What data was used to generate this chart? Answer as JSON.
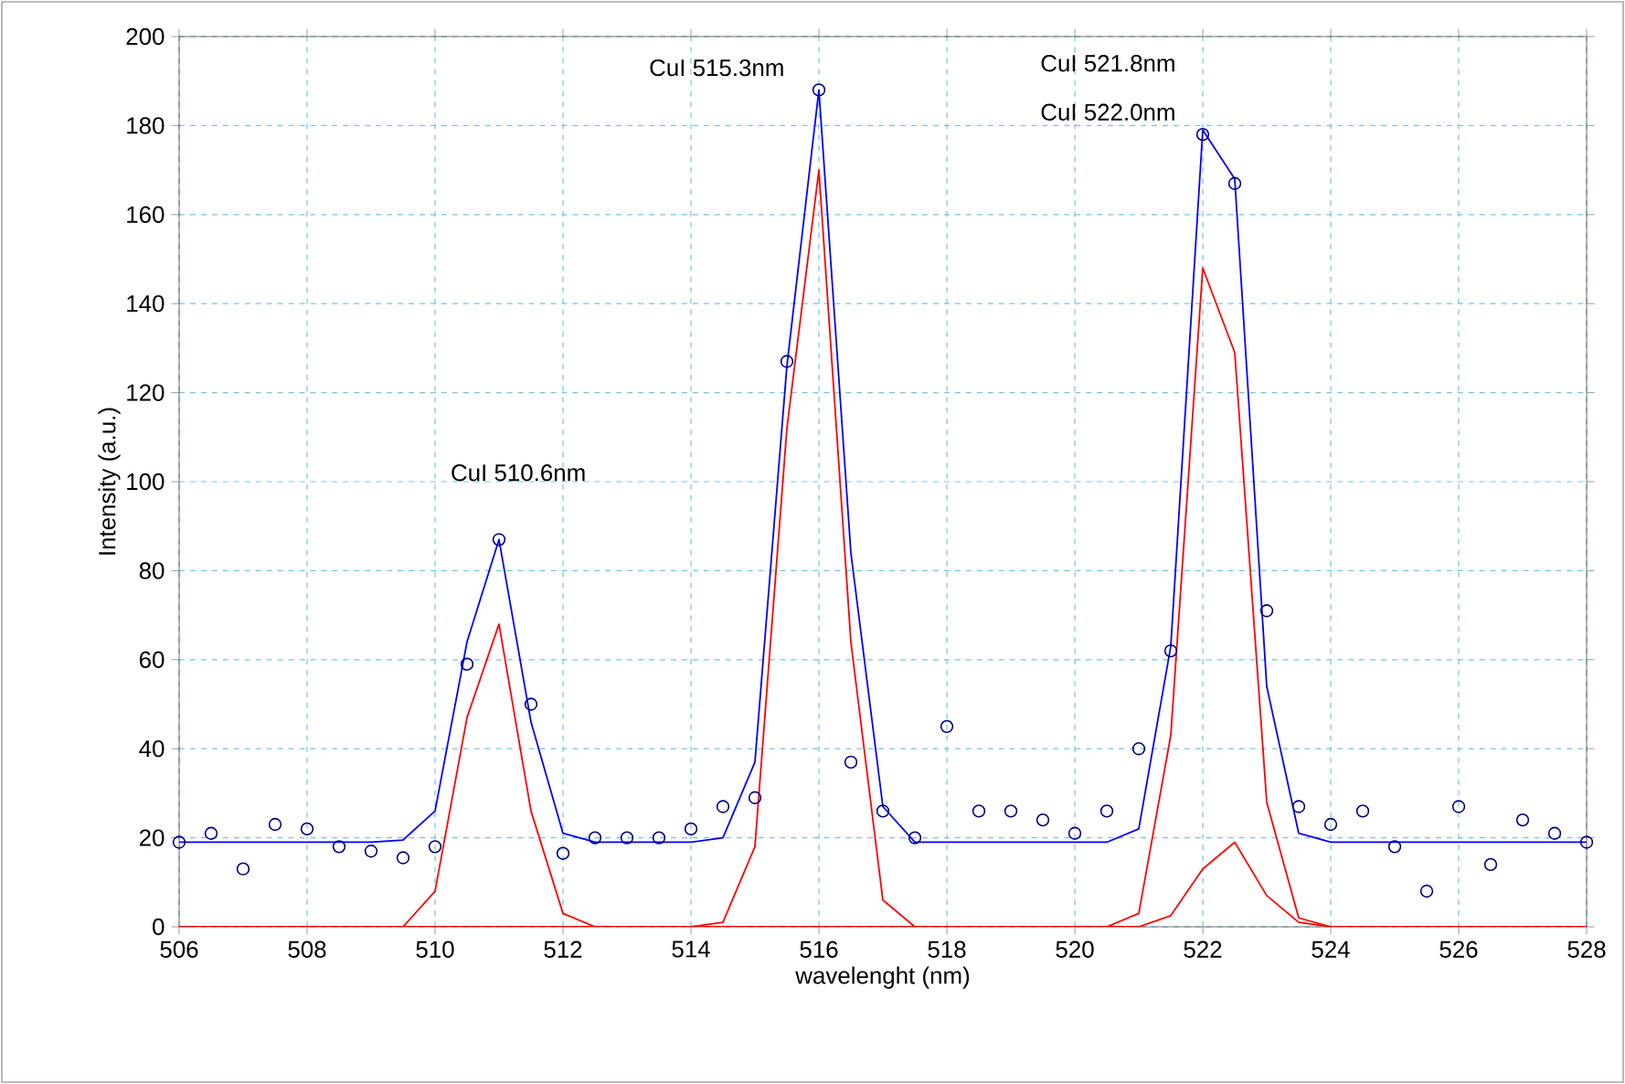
{
  "chart_data": {
    "type": "line",
    "xlabel": "wavelenght (nm)",
    "ylabel": "Intensity (a.u.)",
    "x": [
      506,
      506.5,
      507,
      507.5,
      508,
      508.5,
      509,
      509.5,
      510,
      510.5,
      511,
      511.5,
      512,
      512.5,
      513,
      513.5,
      514,
      514.5,
      515,
      515.5,
      516,
      516.5,
      517,
      517.5,
      518,
      518.5,
      519,
      519.5,
      520,
      520.5,
      521,
      521.5,
      522,
      522.5,
      523,
      523.5,
      524,
      524.5,
      525,
      525.5,
      526,
      526.5,
      527,
      527.5,
      528
    ],
    "series": [
      {
        "color": "#ff0000",
        "marker": "none",
        "values": [
          0,
          0,
          0,
          0,
          0,
          0,
          0,
          0,
          8,
          47,
          68,
          26,
          3,
          0,
          0,
          0,
          0,
          1,
          18,
          112,
          170,
          64,
          6,
          0,
          0,
          0,
          0,
          0,
          0,
          0,
          3,
          43,
          148,
          129,
          28,
          2,
          0,
          0,
          0,
          0,
          0,
          0,
          0,
          0,
          0
        ]
      },
      {
        "color": "#ff0000",
        "marker": "none",
        "values": [
          0,
          0,
          0,
          0,
          0,
          0,
          0,
          0,
          0,
          0,
          0,
          0,
          0,
          0,
          0,
          0,
          0,
          0,
          0,
          0,
          0,
          0,
          0,
          0,
          0,
          0,
          0,
          0,
          0,
          0,
          0,
          2.5,
          13,
          19,
          7,
          1,
          0,
          0,
          0,
          0,
          0,
          0,
          0,
          0,
          0
        ]
      },
      {
        "color": "#0000ff",
        "marker": "none",
        "values": [
          19,
          19,
          19,
          19,
          19,
          19,
          19,
          19.5,
          26,
          64,
          87,
          46,
          21,
          19,
          19,
          19,
          19,
          20,
          37,
          126,
          188,
          84,
          27,
          19,
          19,
          19,
          19,
          19,
          19,
          19,
          22,
          63,
          179,
          168,
          54,
          21,
          19,
          19,
          19,
          19,
          19,
          19,
          19,
          19,
          19
        ]
      },
      {
        "type": "scatter",
        "color": "#000080",
        "marker": "circle",
        "values": [
          19,
          21,
          13,
          23,
          22,
          18,
          17,
          15.5,
          18,
          59,
          87,
          50,
          16.5,
          20,
          20,
          20,
          22,
          27,
          29,
          127,
          188,
          37,
          26,
          20,
          45,
          26,
          26,
          24,
          21,
          26,
          40,
          62,
          178,
          167,
          71,
          27,
          23,
          26,
          18,
          8,
          27,
          14,
          24,
          21,
          19
        ]
      }
    ],
    "xlim": [
      506,
      528
    ],
    "xticks": [
      506,
      508,
      510,
      512,
      514,
      516,
      518,
      520,
      522,
      524,
      526,
      528
    ],
    "ylim": [
      0,
      200
    ],
    "yticks": [
      0,
      20,
      40,
      60,
      80,
      100,
      120,
      140,
      160,
      180,
      200
    ],
    "grid": true,
    "annotations": [
      "CuI 510.6nm",
      "CuI 515.3nm",
      "CuI 521.8nm",
      "CuI 522.0nm"
    ]
  }
}
